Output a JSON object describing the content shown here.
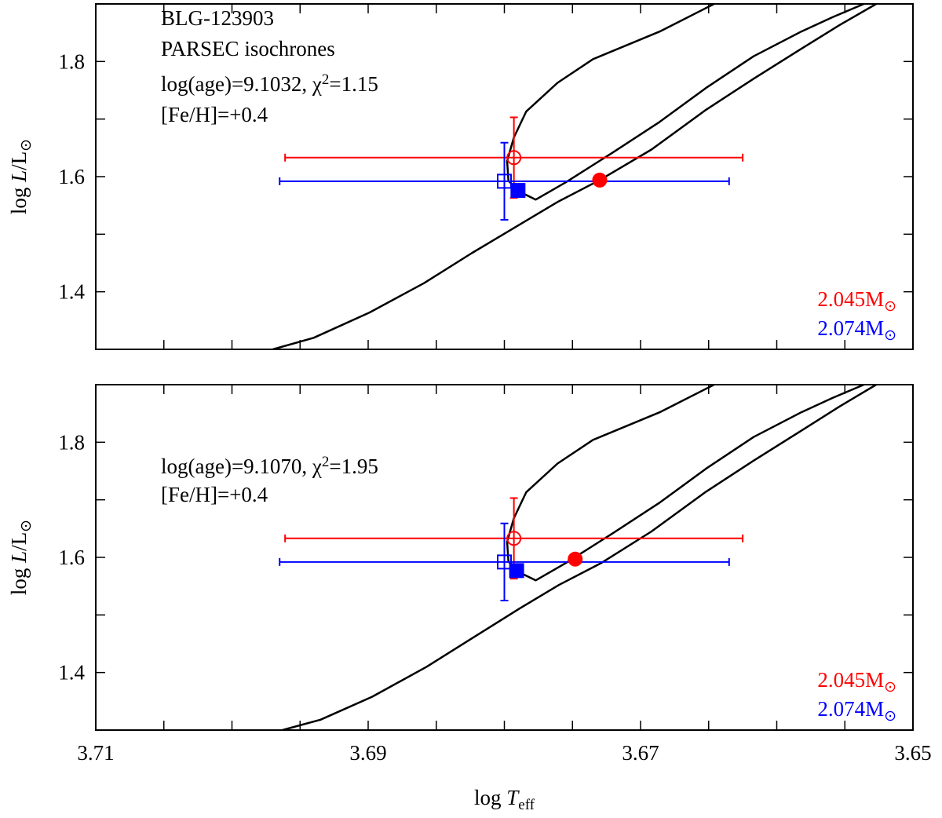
{
  "chart_data": [
    {
      "type": "scatter",
      "annotations": [
        [
          "BLG-123903"
        ],
        [
          "PARSEC isochrones"
        ],
        [
          "log(age)=9.1032, χ",
          "2",
          "=1.15"
        ],
        [
          "[Fe/H]=+0.4"
        ]
      ],
      "ylabel": [
        "log ",
        "L",
        "/L",
        "⊙"
      ],
      "xlim": [
        3.71,
        3.65
      ],
      "ylim": [
        1.3,
        1.9
      ],
      "xticks": [
        3.71,
        3.69,
        3.67,
        3.65
      ],
      "xminorticks": [
        3.705,
        3.7,
        3.695,
        3.685,
        3.68,
        3.675,
        3.665,
        3.66,
        3.655
      ],
      "xticklabels": false,
      "yticks": [
        1.4,
        1.6,
        1.8
      ],
      "yminorticks": [
        1.3,
        1.5,
        1.7,
        1.9
      ],
      "isochrones": [
        {
          "color": "#000000",
          "x": [
            3.697,
            3.694,
            3.6899,
            3.6859,
            3.6824,
            3.679,
            3.6761,
            3.673,
            3.6692,
            3.6652,
            3.6617,
            3.6582,
            3.6554,
            3.6527
          ],
          "y": [
            1.3,
            1.32,
            1.364,
            1.415,
            1.467,
            1.515,
            1.556,
            1.594,
            1.647,
            1.716,
            1.77,
            1.822,
            1.863,
            1.9
          ]
        },
        {
          "color": "#000000",
          "x": [
            3.6646,
            3.6686,
            3.6735,
            3.6761,
            3.6784,
            3.6793,
            3.6798,
            3.6797,
            3.679,
            3.6777,
            3.6755,
            3.6721,
            3.6686,
            3.6652,
            3.6617,
            3.6582,
            3.6559,
            3.6536
          ],
          "y": [
            1.9,
            1.852,
            1.804,
            1.763,
            1.713,
            1.668,
            1.627,
            1.593,
            1.575,
            1.56,
            1.59,
            1.641,
            1.695,
            1.754,
            1.809,
            1.852,
            1.877,
            1.9
          ]
        }
      ],
      "points": [
        {
          "color": "#ff0000",
          "marker": "open-circle",
          "x": 3.6793,
          "y": 1.633,
          "xerr": 0.0168,
          "yerr": 0.07
        },
        {
          "color": "#0000ff",
          "marker": "open-square",
          "x": 3.68,
          "y": 1.592,
          "xerr": 0.0165,
          "yerr": 0.067
        },
        {
          "color": "#ff0000",
          "marker": "filled-circle",
          "x": 3.673,
          "y": 1.594
        },
        {
          "color": "#0000ff",
          "marker": "filled-square",
          "x": 3.679,
          "y": 1.576
        }
      ],
      "labels": [
        {
          "color": "#ff0000",
          "text": [
            "2.045M",
            "⊙"
          ]
        },
        {
          "color": "#0000ff",
          "text": [
            "2.074M",
            "⊙"
          ]
        }
      ]
    },
    {
      "type": "scatter",
      "annotations": [
        [
          "log(age)=9.1070, χ",
          "2",
          "=1.95"
        ],
        [
          "[Fe/H]=+0.4"
        ]
      ],
      "ylabel": [
        "log ",
        "L",
        "/L",
        "⊙"
      ],
      "xlabel": [
        "log ",
        "T",
        "eff"
      ],
      "xlim": [
        3.71,
        3.65
      ],
      "ylim": [
        1.3,
        1.9
      ],
      "xticks": [
        3.71,
        3.69,
        3.67,
        3.65
      ],
      "xminorticks": [
        3.705,
        3.7,
        3.695,
        3.685,
        3.68,
        3.675,
        3.665,
        3.66,
        3.655
      ],
      "xticklabels": true,
      "yticks": [
        1.4,
        1.6,
        1.8
      ],
      "yminorticks": [
        1.3,
        1.5,
        1.7,
        1.9
      ],
      "isochrones": [
        {
          "color": "#000000",
          "x": [
            3.6963,
            3.6935,
            3.6897,
            3.6857,
            3.6822,
            3.6789,
            3.676,
            3.6729,
            3.6692,
            3.6652,
            3.6617,
            3.6582,
            3.6554,
            3.6527
          ],
          "y": [
            1.3,
            1.318,
            1.358,
            1.41,
            1.462,
            1.511,
            1.552,
            1.59,
            1.645,
            1.714,
            1.768,
            1.82,
            1.862,
            1.9
          ]
        },
        {
          "color": "#000000",
          "x": [
            3.6646,
            3.6686,
            3.6735,
            3.6761,
            3.6784,
            3.6793,
            3.6798,
            3.6797,
            3.679,
            3.6777,
            3.6755,
            3.6721,
            3.6686,
            3.6652,
            3.6617,
            3.6582,
            3.6559,
            3.6536
          ],
          "y": [
            1.9,
            1.852,
            1.804,
            1.763,
            1.713,
            1.668,
            1.627,
            1.593,
            1.575,
            1.56,
            1.59,
            1.641,
            1.695,
            1.754,
            1.809,
            1.852,
            1.877,
            1.9
          ]
        }
      ],
      "points": [
        {
          "color": "#ff0000",
          "marker": "open-circle",
          "x": 3.6793,
          "y": 1.633,
          "xerr": 0.0168,
          "yerr": 0.07
        },
        {
          "color": "#0000ff",
          "marker": "open-square",
          "x": 3.68,
          "y": 1.592,
          "xerr": 0.0165,
          "yerr": 0.067
        },
        {
          "color": "#ff0000",
          "marker": "filled-circle",
          "x": 3.6748,
          "y": 1.597
        },
        {
          "color": "#0000ff",
          "marker": "filled-square",
          "x": 3.6791,
          "y": 1.577
        }
      ],
      "labels": [
        {
          "color": "#ff0000",
          "text": [
            "2.045M",
            "⊙"
          ]
        },
        {
          "color": "#0000ff",
          "text": [
            "2.074M",
            "⊙"
          ]
        }
      ]
    }
  ]
}
